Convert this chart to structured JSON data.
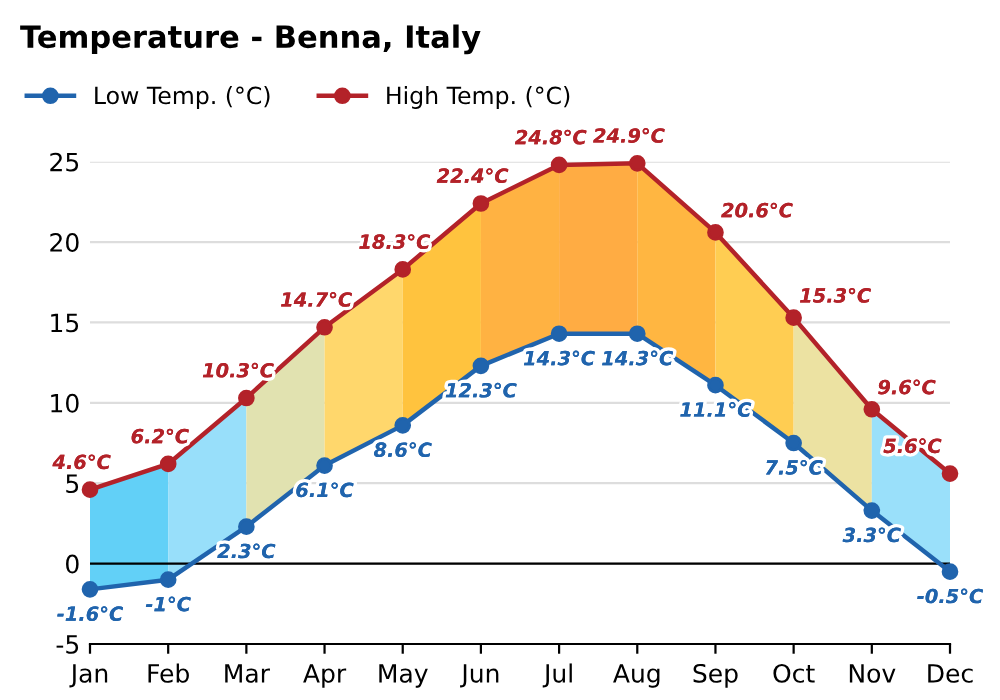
{
  "chart_data": {
    "type": "line",
    "title": "Temperature - Benna, Italy",
    "categories": [
      "Jan",
      "Feb",
      "Mar",
      "Apr",
      "May",
      "Jun",
      "Jul",
      "Aug",
      "Sep",
      "Oct",
      "Nov",
      "Dec"
    ],
    "series": [
      {
        "name": "Low Temp. (°C)",
        "color": "#2064ad",
        "values": [
          -1.6,
          -1,
          2.3,
          6.1,
          8.6,
          12.3,
          14.3,
          14.3,
          11.1,
          7.5,
          3.3,
          -0.5
        ],
        "value_labels": [
          "-1.6°C",
          "-1°C",
          "2.3°C",
          "6.1°C",
          "8.6°C",
          "12.3°C",
          "14.3°C",
          "14.3°C",
          "11.1°C",
          "7.5°C",
          "3.3°C",
          "-0.5°C"
        ]
      },
      {
        "name": "High Temp. (°C)",
        "color": "#b32229",
        "values": [
          4.6,
          6.2,
          10.3,
          14.7,
          18.3,
          22.4,
          24.8,
          24.9,
          20.6,
          15.3,
          9.6,
          5.6
        ],
        "value_labels": [
          "4.6°C",
          "6.2°C",
          "10.3°C",
          "14.7°C",
          "18.3°C",
          "22.4°C",
          "24.8°C",
          "24.9°C",
          "20.6°C",
          "15.3°C",
          "9.6°C",
          "5.6°C"
        ]
      }
    ],
    "ylim": [
      -5,
      25
    ],
    "yticks": [
      -5,
      0,
      5,
      10,
      15,
      20,
      25
    ],
    "ref_lines": [
      {
        "axis": "y",
        "value": 0,
        "color": "#000000"
      }
    ],
    "grid": "y",
    "legend": "top left",
    "marker": "circle",
    "line_style": "solid"
  }
}
